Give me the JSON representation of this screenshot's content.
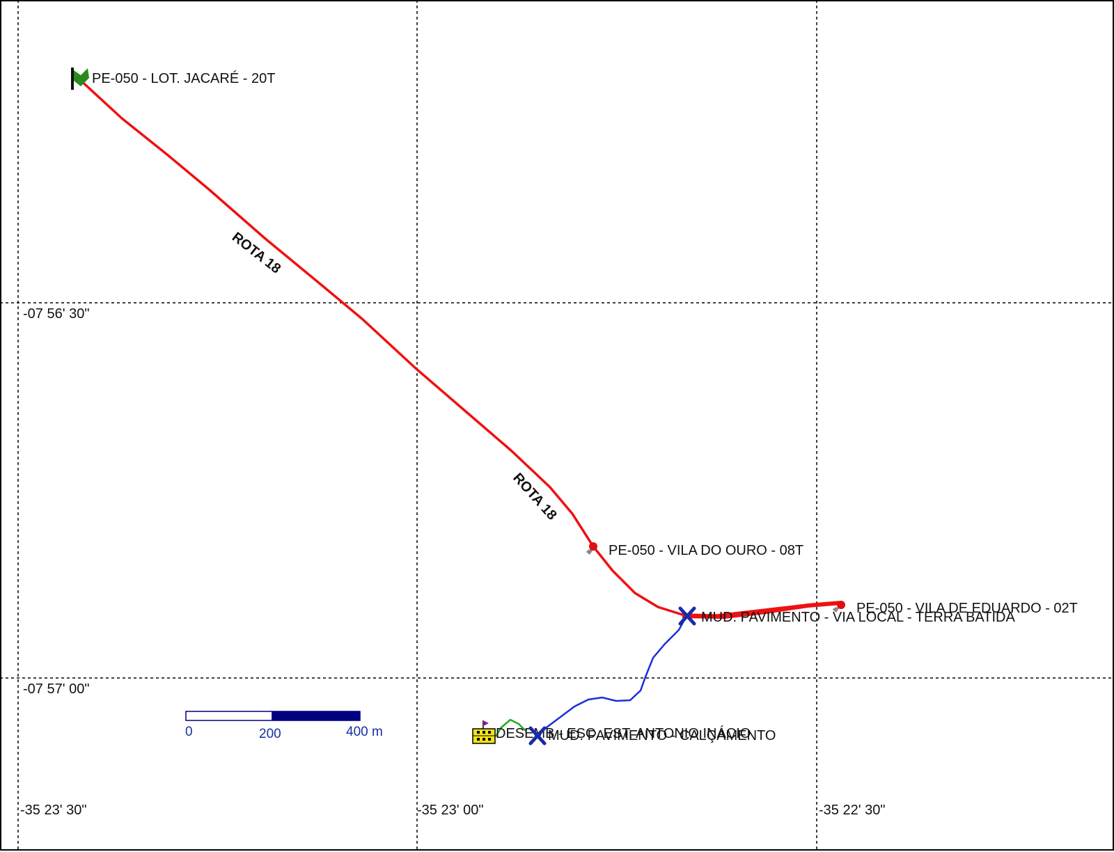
{
  "map": {
    "grid": {
      "latitudes": [
        "-07 56' 30\"",
        "-07 57' 00\""
      ],
      "longitudes": [
        "-35 23' 30\"",
        "-35 23' 00\"",
        "-35 22' 30\""
      ]
    },
    "routes": [
      {
        "label": "ROTA 18",
        "color": "#ee1111"
      },
      {
        "label": "ROTA 18",
        "color": "#ee1111"
      }
    ],
    "connector_color": "#1a2fd8",
    "short_path_color": "#22aa22",
    "stops": [
      {
        "label": "PE-050 - LOT. JACARÉ - 20T",
        "icon": "green-flag-icon"
      },
      {
        "label": "PE-050 - VILA DO OURO - 08T",
        "icon": "red-stop-pin-icon"
      },
      {
        "label": "PE-050 - VILA DE EDUARDO - 02T",
        "icon": "red-stop-pin-icon"
      }
    ],
    "pavement_changes": [
      {
        "label": "MUD. PAVIMENTO - VIA  LOCAL - TERRA BATIDA",
        "icon": "blue-x-icon"
      },
      {
        "label": "MUD. PAVIMENTO - CALÇAMENTO",
        "icon": "blue-x-icon"
      }
    ],
    "school": {
      "label": "DESEMB - ESC. EST. ANTONIO INÁCIO",
      "icon": "school-building-icon"
    },
    "scale_bar": {
      "ticks": [
        "0",
        "200",
        "400 m"
      ],
      "colors": [
        "#ffffff",
        "#000080"
      ]
    }
  }
}
